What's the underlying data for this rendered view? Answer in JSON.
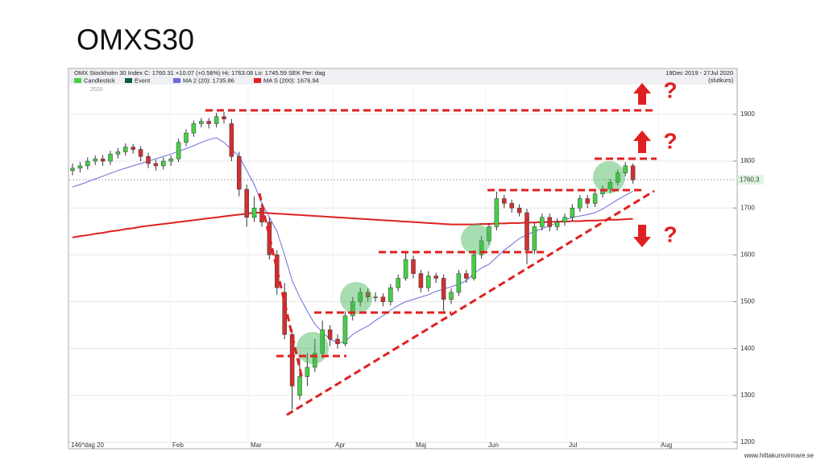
{
  "slide_title": "OMXS30",
  "footer": "www.hittakursvinnare.se",
  "chart_data": {
    "type": "candlestick",
    "header": "OMX Stockholm 30 Index   C: 1760.31 +10.07 (+0.58%)   Hi: 1763.08   Lo: 1745.59   SEK   Per: dag",
    "period": "19Dec 2019 - 27Jul 2020",
    "price_type": "(slutkurs)",
    "year_label": "2020",
    "x_start_label": "146*dag 20",
    "months": [
      "Feb",
      "Mar",
      "Apr",
      "Maj",
      "Jun",
      "Jul",
      "Aug"
    ],
    "ylim": [
      1200,
      1960
    ],
    "yticks": [
      1200,
      1300,
      1400,
      1500,
      1600,
      1700,
      1800,
      1900
    ],
    "grid": true,
    "last_price": {
      "value": 1760.3,
      "label": "1760,3"
    },
    "event_legend": {
      "name": "Event",
      "color": "#0b5d3b"
    },
    "annotations": [
      "?",
      "?",
      "?"
    ],
    "candles": {
      "name": "Candlestick",
      "up_color": "#46d046",
      "down_color": "#d03030",
      "open": [
        1780,
        1785,
        1790,
        1800,
        1805,
        1800,
        1815,
        1820,
        1830,
        1825,
        1810,
        1795,
        1790,
        1800,
        1805,
        1840,
        1860,
        1880,
        1885,
        1880,
        1895,
        1880,
        1810,
        1740,
        1680,
        1700,
        1670,
        1600,
        1520,
        1430,
        1300,
        1340,
        1360,
        1390,
        1440,
        1420,
        1410,
        1470,
        1500,
        1520,
        1510,
        1510,
        1500,
        1530,
        1550,
        1590,
        1560,
        1530,
        1555,
        1550,
        1505,
        1520,
        1560,
        1550,
        1600,
        1630,
        1660,
        1720,
        1710,
        1700,
        1690,
        1610,
        1660,
        1680,
        1660,
        1670,
        1680,
        1700,
        1720,
        1710,
        1730,
        1740,
        1755,
        1775,
        1790
      ],
      "high": [
        1795,
        1798,
        1808,
        1812,
        1813,
        1822,
        1828,
        1838,
        1837,
        1832,
        1818,
        1803,
        1808,
        1812,
        1848,
        1868,
        1887,
        1892,
        1892,
        1903,
        1905,
        1890,
        1820,
        1750,
        1725,
        1710,
        1680,
        1610,
        1540,
        1440,
        1380,
        1390,
        1420,
        1460,
        1450,
        1430,
        1480,
        1510,
        1530,
        1528,
        1520,
        1518,
        1538,
        1558,
        1605,
        1598,
        1568,
        1565,
        1562,
        1558,
        1528,
        1568,
        1568,
        1610,
        1640,
        1668,
        1735,
        1728,
        1718,
        1708,
        1698,
        1668,
        1688,
        1688,
        1678,
        1688,
        1708,
        1728,
        1728,
        1738,
        1748,
        1762,
        1782,
        1798,
        1795
      ],
      "low": [
        1770,
        1776,
        1782,
        1792,
        1790,
        1792,
        1806,
        1812,
        1816,
        1800,
        1785,
        1780,
        1782,
        1790,
        1798,
        1832,
        1852,
        1872,
        1870,
        1872,
        1880,
        1800,
        1725,
        1660,
        1670,
        1660,
        1590,
        1515,
        1420,
        1270,
        1290,
        1320,
        1350,
        1380,
        1405,
        1400,
        1405,
        1460,
        1490,
        1500,
        1500,
        1490,
        1492,
        1522,
        1545,
        1550,
        1520,
        1522,
        1540,
        1480,
        1495,
        1512,
        1540,
        1545,
        1592,
        1622,
        1652,
        1700,
        1690,
        1682,
        1580,
        1602,
        1652,
        1650,
        1652,
        1662,
        1672,
        1692,
        1700,
        1702,
        1722,
        1732,
        1748,
        1768,
        1752
      ],
      "close": [
        1785,
        1790,
        1800,
        1805,
        1800,
        1815,
        1820,
        1830,
        1825,
        1810,
        1795,
        1790,
        1800,
        1805,
        1840,
        1860,
        1880,
        1885,
        1880,
        1895,
        1890,
        1810,
        1740,
        1680,
        1700,
        1670,
        1600,
        1530,
        1430,
        1320,
        1340,
        1360,
        1390,
        1440,
        1420,
        1410,
        1470,
        1500,
        1520,
        1510,
        1510,
        1500,
        1530,
        1550,
        1590,
        1560,
        1530,
        1555,
        1550,
        1505,
        1520,
        1560,
        1550,
        1600,
        1630,
        1660,
        1720,
        1710,
        1700,
        1690,
        1610,
        1660,
        1680,
        1660,
        1670,
        1680,
        1700,
        1720,
        1710,
        1730,
        1740,
        1755,
        1775,
        1790,
        1760
      ]
    },
    "series": [
      {
        "name": "MA 2 (20): 1735.86",
        "color": "#6a6ae0",
        "values": [
          1745,
          1750,
          1756,
          1762,
          1768,
          1774,
          1780,
          1785,
          1790,
          1795,
          1800,
          1805,
          1810,
          1815,
          1821,
          1827,
          1833,
          1840,
          1846,
          1850,
          1840,
          1825,
          1810,
          1780,
          1750,
          1710,
          1680,
          1650,
          1600,
          1545,
          1510,
          1480,
          1452,
          1435,
          1420,
          1412,
          1415,
          1430,
          1440,
          1448,
          1460,
          1470,
          1482,
          1492,
          1500,
          1505,
          1510,
          1515,
          1522,
          1527,
          1532,
          1537,
          1545,
          1560,
          1572,
          1580,
          1595,
          1610,
          1622,
          1635,
          1643,
          1650,
          1656,
          1662,
          1668,
          1675,
          1680,
          1683,
          1686,
          1690,
          1698,
          1708,
          1718,
          1727,
          1736
        ]
      },
      {
        "name": "MA S (200): 1676.94",
        "color": "#e02020",
        "values": [
          1637,
          1640,
          1642,
          1645,
          1647,
          1650,
          1652,
          1655,
          1657,
          1660,
          1662,
          1664,
          1666,
          1668,
          1670,
          1672,
          1674,
          1676,
          1678,
          1680,
          1682,
          1684,
          1686,
          1688,
          1690,
          1690,
          1689,
          1688,
          1687,
          1686,
          1685,
          1684,
          1683,
          1682,
          1681,
          1680,
          1679,
          1678,
          1677,
          1676,
          1675,
          1674,
          1673,
          1672,
          1671,
          1670,
          1669,
          1668,
          1667,
          1666,
          1665,
          1665,
          1665,
          1665,
          1666,
          1666,
          1667,
          1667,
          1668,
          1668,
          1669,
          1669,
          1670,
          1670,
          1671,
          1671,
          1672,
          1672,
          1673,
          1673,
          1674,
          1675,
          1675,
          1676,
          1677
        ]
      }
    ]
  }
}
